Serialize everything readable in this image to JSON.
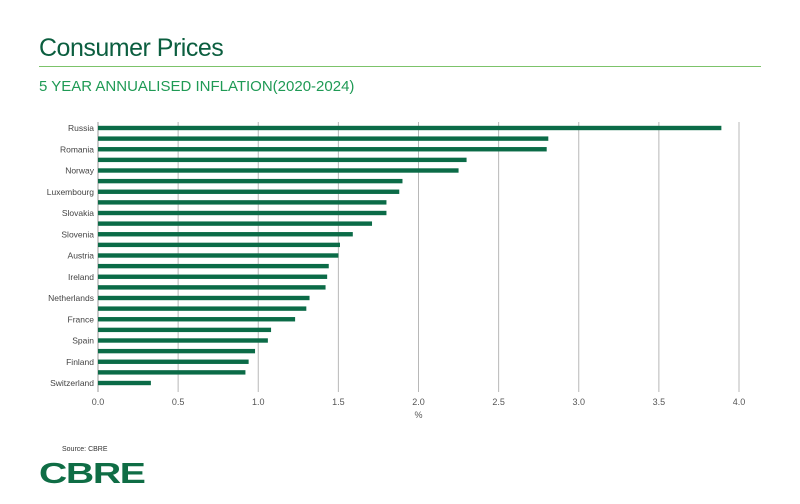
{
  "header": {
    "title": "Consumer Prices",
    "subtitle": "5 YEAR ANNUALISED INFLATION(2020-2024)"
  },
  "footer": {
    "source": "Source: CBRE",
    "logo": "CBRE"
  },
  "colors": {
    "bar": "#0b6b47",
    "grid": "#b8b8b8",
    "title": "#0b5e3f",
    "subtitle": "#1f9a55"
  },
  "chart_data": {
    "type": "bar",
    "orientation": "horizontal",
    "title": "5 YEAR ANNUALISED INFLATION(2020-2024)",
    "xlabel": "%",
    "ylabel": "",
    "xlim": [
      0,
      4.0
    ],
    "xticks": [
      "0.0",
      "0.5",
      "1.0",
      "1.5",
      "2.0",
      "2.5",
      "3.0",
      "3.5",
      "4.0"
    ],
    "grid": true,
    "categories": [
      "Russia",
      "",
      "Romania",
      "",
      "Norway",
      "",
      "Luxembourg",
      "",
      "Slovakia",
      "",
      "Slovenia",
      "",
      "Austria",
      "",
      "Ireland",
      "",
      "Netherlands",
      "",
      "France",
      "",
      "Spain",
      "",
      "Finland",
      "",
      "Switzerland"
    ],
    "values": [
      3.89,
      2.81,
      2.8,
      2.3,
      2.25,
      1.9,
      1.88,
      1.8,
      1.8,
      1.71,
      1.59,
      1.51,
      1.5,
      1.44,
      1.43,
      1.42,
      1.32,
      1.3,
      1.23,
      1.08,
      1.06,
      0.98,
      0.94,
      0.92,
      0.33
    ]
  }
}
